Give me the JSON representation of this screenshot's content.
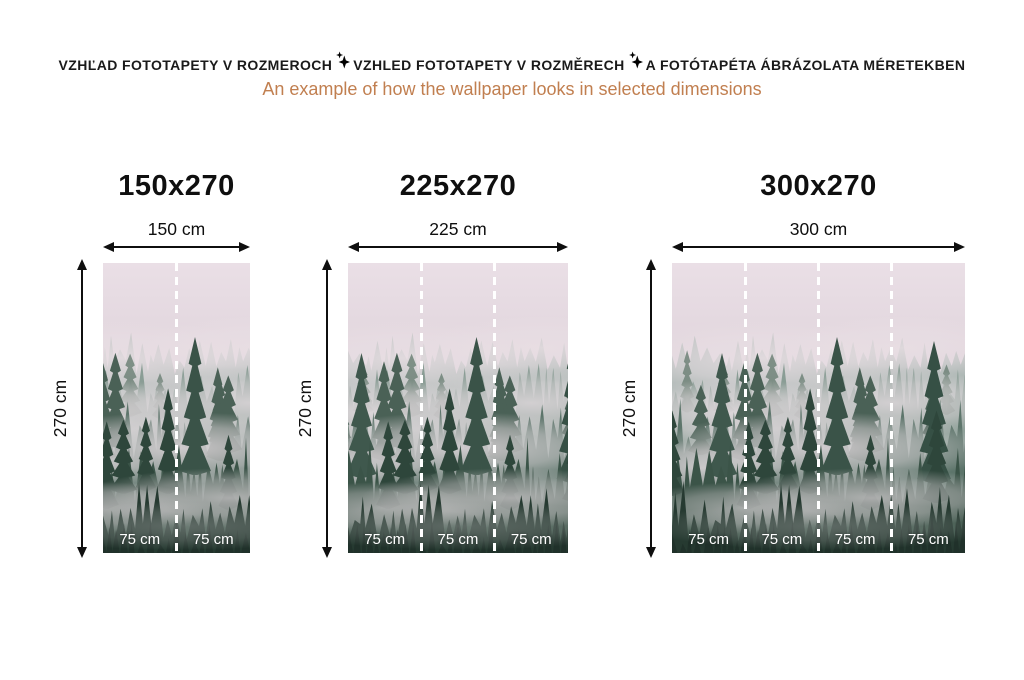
{
  "header": {
    "segments": [
      "VZHĽAD FOTOTAPETY V ROZMEROCH",
      "VZHLED FOTOTAPETY V ROZMĚRECH",
      "A FOTÓTAPÉTA ÁBRÁZOLATA MÉRETEKBEN"
    ],
    "separator_icon": "sparkle-star",
    "subtitle": "An example of how the wallpaper looks in selected dimensions"
  },
  "colors": {
    "header_text": "#1a1a1a",
    "subtitle_accent": "#c17f50",
    "arrow": "#0f0f0f",
    "seam_dash": "#ffffff",
    "panel_label": "#ffffff"
  },
  "image_subject": "misty-pine-forest-wallpaper",
  "panels": [
    {
      "title": "150x270",
      "width_label": "150 cm",
      "height_label": "270 cm",
      "segments": [
        "75 cm",
        "75 cm"
      ]
    },
    {
      "title": "225x270",
      "width_label": "225 cm",
      "height_label": "270 cm",
      "segments": [
        "75 cm",
        "75 cm",
        "75 cm"
      ]
    },
    {
      "title": "300x270",
      "width_label": "300 cm",
      "height_label": "270 cm",
      "segments": [
        "75 cm",
        "75 cm",
        "75 cm",
        "75 cm"
      ]
    }
  ]
}
